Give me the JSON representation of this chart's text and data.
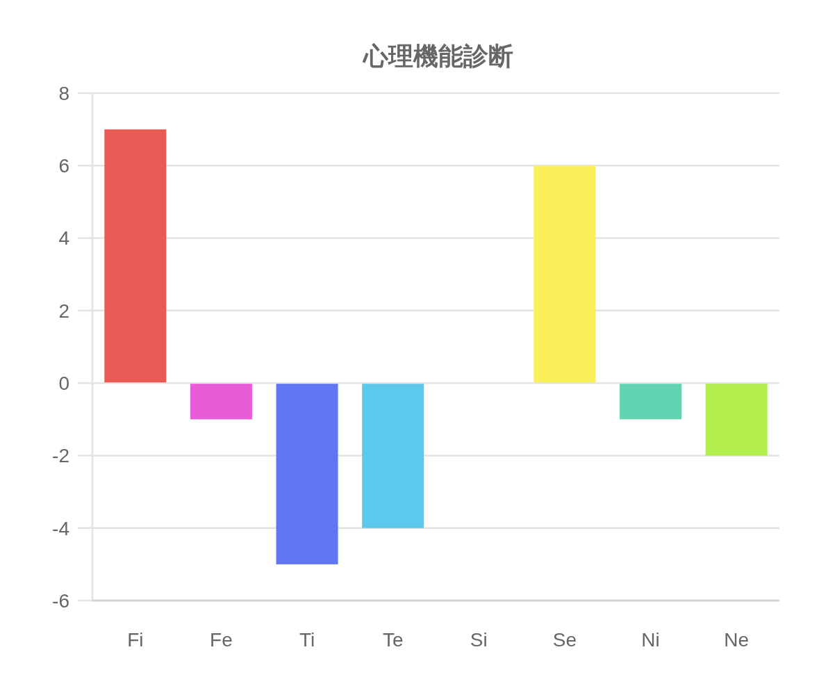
{
  "chart_data": {
    "type": "bar",
    "title": "心理機能診断",
    "categories": [
      "Fi",
      "Fe",
      "Ti",
      "Te",
      "Si",
      "Se",
      "Ni",
      "Ne"
    ],
    "values": [
      7,
      -1,
      -5,
      -4,
      0,
      6,
      -1,
      -2
    ],
    "colors": [
      "#e85b54",
      "#e85cd8",
      "#6075f2",
      "#5bc8ec",
      null,
      "#fbf05a",
      "#62d4b4",
      "#b2ef4e"
    ],
    "ylim": [
      -6,
      8
    ],
    "yticks": [
      -6,
      -4,
      -2,
      0,
      2,
      4,
      6,
      8
    ],
    "grid": "y"
  }
}
